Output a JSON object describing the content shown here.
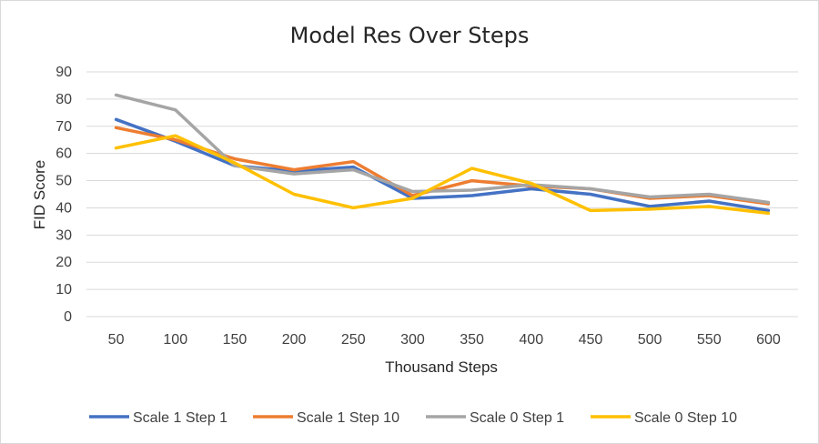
{
  "chart_data": {
    "type": "line",
    "title": "Model Res Over Steps",
    "xlabel": "Thousand Steps",
    "ylabel": "FID Score",
    "categories": [
      "50",
      "100",
      "150",
      "200",
      "250",
      "300",
      "350",
      "400",
      "450",
      "500",
      "550",
      "600"
    ],
    "ylim": [
      0,
      90
    ],
    "yticks": [
      0,
      10,
      20,
      30,
      40,
      50,
      60,
      70,
      80,
      90
    ],
    "grid": true,
    "legend_position": "bottom",
    "series": [
      {
        "name": "Scale 1 Step 1",
        "color": "#4472c4",
        "values": [
          72.5,
          64.5,
          55.5,
          53.5,
          55,
          43.5,
          44.5,
          47,
          45,
          40.5,
          42.5,
          39
        ]
      },
      {
        "name": "Scale 1 Step 10",
        "color": "#ed7d31",
        "values": [
          69.5,
          65,
          58,
          54,
          57,
          44.5,
          50,
          48,
          47,
          43.5,
          44.5,
          41.5
        ]
      },
      {
        "name": "Scale 0 Step 1",
        "color": "#a5a5a5",
        "values": [
          81.5,
          76,
          55.5,
          52.5,
          54,
          46,
          46.5,
          48.5,
          47,
          44,
          45,
          42
        ]
      },
      {
        "name": "Scale 0 Step 10",
        "color": "#ffc000",
        "values": [
          62,
          66.5,
          56.5,
          45,
          40,
          43.5,
          54.5,
          49,
          39,
          39.5,
          40.5,
          38
        ]
      }
    ]
  }
}
